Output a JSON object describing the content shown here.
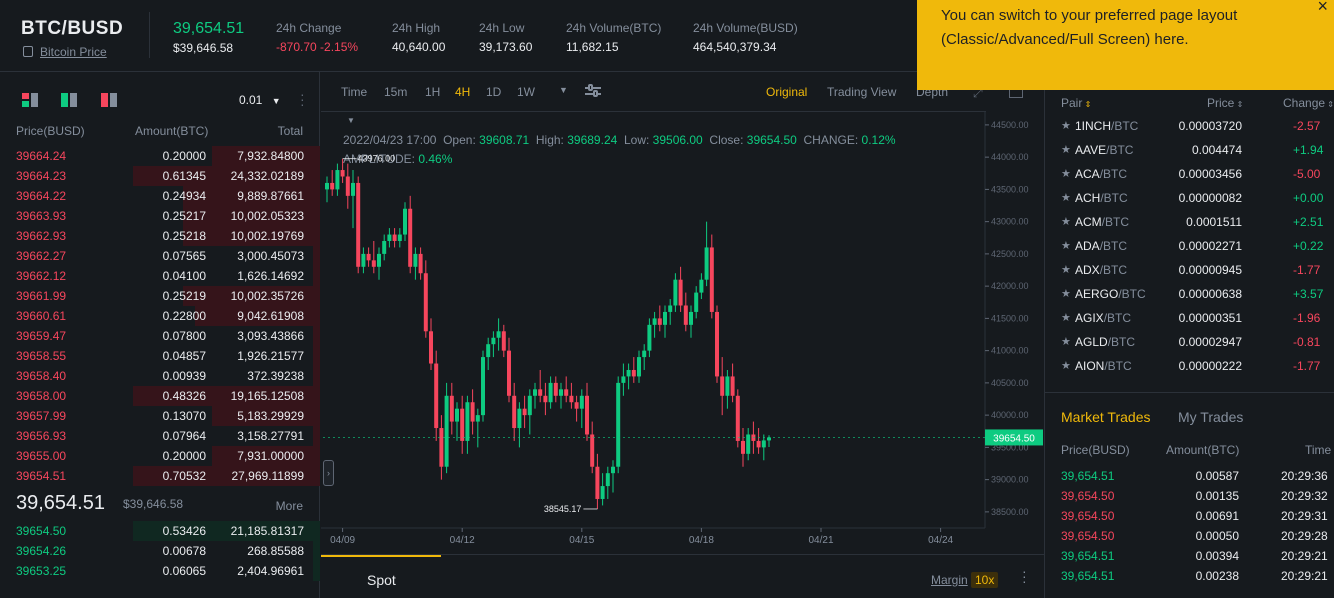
{
  "header": {
    "symbol": "BTC/BUSD",
    "sublink": "Bitcoin Price",
    "last_price": "39,654.51",
    "last_price_usd": "$39,646.58",
    "stats": [
      {
        "label": "24h Change",
        "value": "-870.70 -2.15%"
      },
      {
        "label": "24h High",
        "value": "40,640.00"
      },
      {
        "label": "24h Low",
        "value": "39,173.60"
      },
      {
        "label": "24h Volume(BTC)",
        "value": "11,682.15"
      },
      {
        "label": "24h Volume(BUSD)",
        "value": "464,540,379.34"
      }
    ]
  },
  "toast": {
    "text": "You can switch to your preferred page layout (Classic/Advanced/Full Screen) here.",
    "close": "×"
  },
  "orderbook": {
    "precision": "0.01",
    "col_price": "Price(BUSD)",
    "col_amount": "Amount(BTC)",
    "col_total": "Total",
    "asks": [
      {
        "price": "39664.24",
        "amount": "0.20000",
        "total": "7,932.84800",
        "depth": 0.58
      },
      {
        "price": "39664.23",
        "amount": "0.61345",
        "total": "24,332.02189",
        "depth": 1.0
      },
      {
        "price": "39664.22",
        "amount": "0.24934",
        "total": "9,889.87661",
        "depth": 0.73
      },
      {
        "price": "39663.93",
        "amount": "0.25217",
        "total": "10,002.05323",
        "depth": 0.73
      },
      {
        "price": "39662.93",
        "amount": "0.25218",
        "total": "10,002.19769",
        "depth": 0.73
      },
      {
        "price": "39662.27",
        "amount": "0.07565",
        "total": "3,000.45073",
        "depth": 0.04
      },
      {
        "price": "39662.12",
        "amount": "0.04100",
        "total": "1,626.14692",
        "depth": 0.04
      },
      {
        "price": "39661.99",
        "amount": "0.25219",
        "total": "10,002.35726",
        "depth": 0.73
      },
      {
        "price": "39660.61",
        "amount": "0.22800",
        "total": "9,042.61908",
        "depth": 0.67
      },
      {
        "price": "39659.47",
        "amount": "0.07800",
        "total": "3,093.43866",
        "depth": 0.04
      },
      {
        "price": "39658.55",
        "amount": "0.04857",
        "total": "1,926.21577",
        "depth": 0.04
      },
      {
        "price": "39658.40",
        "amount": "0.00939",
        "total": "372.39238",
        "depth": 0.04
      },
      {
        "price": "39658.00",
        "amount": "0.48326",
        "total": "19,165.12508",
        "depth": 1.0
      },
      {
        "price": "39657.99",
        "amount": "0.13070",
        "total": "5,183.29929",
        "depth": 0.58
      },
      {
        "price": "39656.93",
        "amount": "0.07964",
        "total": "3,158.27791",
        "depth": 0.04
      },
      {
        "price": "39655.00",
        "amount": "0.20000",
        "total": "7,931.00000",
        "depth": 0.58
      },
      {
        "price": "39654.51",
        "amount": "0.70532",
        "total": "27,969.11899",
        "depth": 1.0
      }
    ],
    "mid_price": "39,654.51",
    "mid_usd": "$39,646.58",
    "more": "More",
    "bids": [
      {
        "price": "39654.50",
        "amount": "0.53426",
        "total": "21,185.81317",
        "depth": 1.0
      },
      {
        "price": "39654.26",
        "amount": "0.00678",
        "total": "268.85588",
        "depth": 0.04
      },
      {
        "price": "39653.25",
        "amount": "0.06065",
        "total": "2,404.96961",
        "depth": 0.04
      }
    ]
  },
  "chart": {
    "toolbar": [
      "Time",
      "15m",
      "1H",
      "4H",
      "1D",
      "1W"
    ],
    "active_interval": "4H",
    "views": [
      "Original",
      "Trading View",
      "Depth"
    ],
    "info1": {
      "date": "2022/04/23 17:00",
      "open_l": "Open:",
      "open": "39608.71",
      "high_l": "High:",
      "high": "39689.24",
      "low_l": "Low:",
      "low": "39506.00",
      "close_l": "Close:",
      "close": "39654.50",
      "change_l": "CHANGE:",
      "change": "0.12%"
    },
    "info2": {
      "amp_l": "AMPLITUDE:",
      "amp": "0.46%"
    },
    "current_label": "39654.50",
    "max_label": "43976.00",
    "min_label": "38545.17"
  },
  "chart_data": {
    "type": "candlestick",
    "y_ticks": [
      "44500.00",
      "44000.00",
      "43500.00",
      "43000.00",
      "42500.00",
      "42000.00",
      "41500.00",
      "41000.00",
      "40500.00",
      "40000.00",
      "39500.00",
      "39000.00",
      "38500.00"
    ],
    "y_tick_values": [
      44500,
      44000,
      43500,
      43000,
      42500,
      42000,
      41500,
      41000,
      40500,
      40000,
      39500,
      39000,
      38500
    ],
    "x_ticks": [
      "04/09",
      "04/12",
      "04/15",
      "04/18",
      "04/21",
      "04/24"
    ],
    "x_tick_index": [
      3,
      26,
      49,
      72,
      95,
      118
    ],
    "ylim": [
      38250,
      44700
    ],
    "candles": [
      [
        43500,
        43700,
        43300,
        43600
      ],
      [
        43600,
        43800,
        43400,
        43500
      ],
      [
        43500,
        43900,
        43400,
        43800
      ],
      [
        43800,
        43976,
        43600,
        43700
      ],
      [
        43700,
        43900,
        43200,
        43400
      ],
      [
        43400,
        43800,
        42900,
        43600
      ],
      [
        43600,
        43700,
        42200,
        42300
      ],
      [
        42300,
        42600,
        42200,
        42500
      ],
      [
        42500,
        42600,
        42300,
        42400
      ],
      [
        42400,
        42700,
        42200,
        42300
      ],
      [
        42300,
        42600,
        42100,
        42500
      ],
      [
        42500,
        42800,
        42400,
        42700
      ],
      [
        42700,
        42900,
        42600,
        42800
      ],
      [
        42800,
        42900,
        42600,
        42700
      ],
      [
        42700,
        42900,
        42600,
        42800
      ],
      [
        42800,
        43300,
        42700,
        43200
      ],
      [
        43200,
        43400,
        42200,
        42300
      ],
      [
        42300,
        42600,
        42100,
        42500
      ],
      [
        42500,
        42600,
        42100,
        42200
      ],
      [
        42200,
        42400,
        41200,
        41300
      ],
      [
        41300,
        41500,
        40700,
        40800
      ],
      [
        40800,
        41000,
        39600,
        39800
      ],
      [
        39800,
        40000,
        39000,
        39200
      ],
      [
        39200,
        40500,
        39100,
        40300
      ],
      [
        40300,
        40500,
        39700,
        39900
      ],
      [
        39900,
        40200,
        39600,
        40100
      ],
      [
        40100,
        40300,
        39400,
        39600
      ],
      [
        39600,
        40300,
        39400,
        40200
      ],
      [
        40200,
        40400,
        39700,
        39900
      ],
      [
        39900,
        40100,
        39500,
        40000
      ],
      [
        40000,
        41000,
        39900,
        40900
      ],
      [
        40900,
        41200,
        40700,
        41100
      ],
      [
        41100,
        41300,
        40900,
        41200
      ],
      [
        41200,
        41500,
        41000,
        41300
      ],
      [
        41300,
        41400,
        40900,
        41000
      ],
      [
        41000,
        41200,
        40200,
        40300
      ],
      [
        40300,
        40500,
        39600,
        39800
      ],
      [
        39800,
        40200,
        39500,
        40100
      ],
      [
        40100,
        40300,
        39800,
        40000
      ],
      [
        40000,
        40400,
        39700,
        40300
      ],
      [
        40300,
        40500,
        40100,
        40400
      ],
      [
        40400,
        40700,
        40200,
        40300
      ],
      [
        40300,
        40500,
        40000,
        40200
      ],
      [
        40200,
        40600,
        40100,
        40500
      ],
      [
        40500,
        40600,
        40200,
        40300
      ],
      [
        40300,
        40500,
        40100,
        40400
      ],
      [
        40400,
        40600,
        40200,
        40300
      ],
      [
        40300,
        40500,
        40100,
        40200
      ],
      [
        40200,
        40300,
        39900,
        40100
      ],
      [
        40100,
        40400,
        39800,
        40300
      ],
      [
        40300,
        40500,
        39600,
        39700
      ],
      [
        39700,
        39900,
        39100,
        39200
      ],
      [
        39200,
        39400,
        38545,
        38700
      ],
      [
        38700,
        39100,
        38600,
        38900
      ],
      [
        38900,
        39200,
        38700,
        39100
      ],
      [
        39100,
        39300,
        38800,
        39200
      ],
      [
        39200,
        40600,
        39100,
        40500
      ],
      [
        40500,
        40800,
        40300,
        40600
      ],
      [
        40600,
        40800,
        40400,
        40700
      ],
      [
        40700,
        40900,
        40500,
        40600
      ],
      [
        40600,
        41000,
        40500,
        40900
      ],
      [
        40900,
        41100,
        40700,
        41000
      ],
      [
        41000,
        41500,
        40900,
        41400
      ],
      [
        41400,
        41600,
        41200,
        41500
      ],
      [
        41500,
        41700,
        41300,
        41400
      ],
      [
        41400,
        41700,
        41200,
        41600
      ],
      [
        41600,
        41800,
        41400,
        41700
      ],
      [
        41700,
        42200,
        41600,
        42100
      ],
      [
        42100,
        42300,
        41600,
        41700
      ],
      [
        41700,
        41900,
        41300,
        41400
      ],
      [
        41400,
        41700,
        41200,
        41600
      ],
      [
        41600,
        42000,
        41500,
        41900
      ],
      [
        41900,
        42200,
        41800,
        42100
      ],
      [
        42100,
        43000,
        42000,
        42600
      ],
      [
        42600,
        42800,
        41500,
        41600
      ],
      [
        41600,
        41700,
        40500,
        40600
      ],
      [
        40600,
        40900,
        40000,
        40300
      ],
      [
        40300,
        40700,
        40100,
        40600
      ],
      [
        40600,
        40800,
        40200,
        40300
      ],
      [
        40300,
        40400,
        39500,
        39600
      ],
      [
        39600,
        39800,
        39200,
        39400
      ],
      [
        39400,
        39800,
        39300,
        39700
      ],
      [
        39700,
        39900,
        39400,
        39600
      ],
      [
        39600,
        39800,
        39400,
        39500
      ],
      [
        39500,
        39700,
        39300,
        39608
      ],
      [
        39608,
        39689,
        39506,
        39654
      ]
    ]
  },
  "bottom": {
    "tab": "Spot",
    "margin": "Margin",
    "leverage": "10x"
  },
  "pairs": {
    "col_pair": "Pair",
    "col_price": "Price",
    "col_change": "Change",
    "rows": [
      {
        "base": "1INCH",
        "quote": "/BTC",
        "price": "0.00003720",
        "change": "-2.57",
        "dir": "dn"
      },
      {
        "base": "AAVE",
        "quote": "/BTC",
        "price": "0.004474",
        "change": "+1.94",
        "dir": "up"
      },
      {
        "base": "ACA",
        "quote": "/BTC",
        "price": "0.00003456",
        "change": "-5.00",
        "dir": "dn"
      },
      {
        "base": "ACH",
        "quote": "/BTC",
        "price": "0.00000082",
        "change": "+0.00",
        "dir": "up"
      },
      {
        "base": "ACM",
        "quote": "/BTC",
        "price": "0.0001511",
        "change": "+2.51",
        "dir": "up"
      },
      {
        "base": "ADA",
        "quote": "/BTC",
        "price": "0.00002271",
        "change": "+0.22",
        "dir": "up"
      },
      {
        "base": "ADX",
        "quote": "/BTC",
        "price": "0.00000945",
        "change": "-1.77",
        "dir": "dn"
      },
      {
        "base": "AERGO",
        "quote": "/BTC",
        "price": "0.00000638",
        "change": "+3.57",
        "dir": "up"
      },
      {
        "base": "AGIX",
        "quote": "/BTC",
        "price": "0.00000351",
        "change": "-1.96",
        "dir": "dn"
      },
      {
        "base": "AGLD",
        "quote": "/BTC",
        "price": "0.00002947",
        "change": "-0.81",
        "dir": "dn"
      },
      {
        "base": "AION",
        "quote": "/BTC",
        "price": "0.00000222",
        "change": "-1.77",
        "dir": "dn"
      }
    ]
  },
  "trades": {
    "tab_market": "Market Trades",
    "tab_mine": "My Trades",
    "col_price": "Price(BUSD)",
    "col_amount": "Amount(BTC)",
    "col_time": "Time",
    "rows": [
      {
        "price": "39,654.51",
        "amount": "0.00587",
        "time": "20:29:36",
        "dir": "up"
      },
      {
        "price": "39,654.50",
        "amount": "0.00135",
        "time": "20:29:32",
        "dir": "dn"
      },
      {
        "price": "39,654.50",
        "amount": "0.00691",
        "time": "20:29:31",
        "dir": "dn"
      },
      {
        "price": "39,654.50",
        "amount": "0.00050",
        "time": "20:29:28",
        "dir": "dn"
      },
      {
        "price": "39,654.51",
        "amount": "0.00394",
        "time": "20:29:21",
        "dir": "up"
      },
      {
        "price": "39,654.51",
        "amount": "0.00238",
        "time": "20:29:21",
        "dir": "up"
      }
    ]
  },
  "colors": {
    "up": "#0ecb81",
    "down": "#f6465d",
    "accent": "#f0b90b",
    "bg": "#161a1e"
  }
}
